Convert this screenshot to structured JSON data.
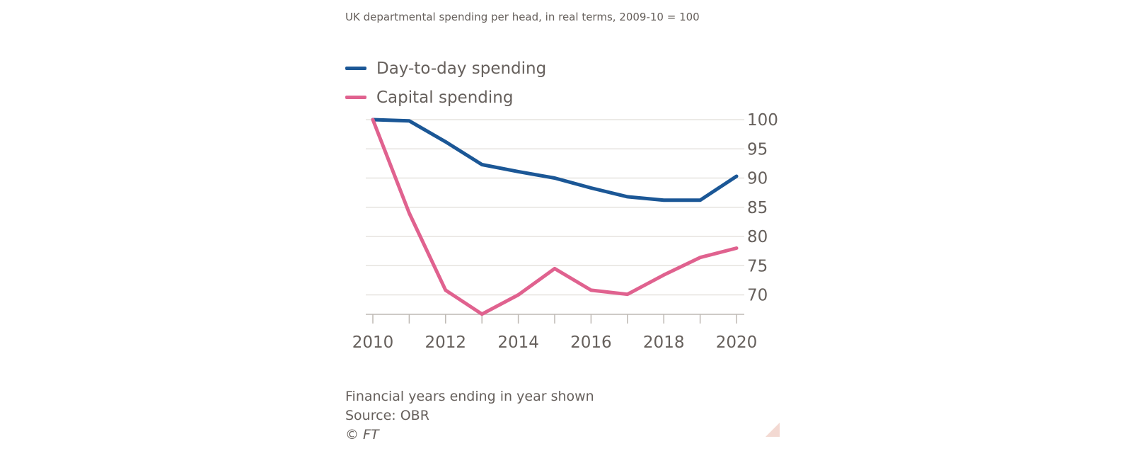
{
  "subtitle": "UK departmental spending per head, in real terms, 2009-10 = 100",
  "footnote": {
    "note": "Financial years ending in year shown",
    "source": "Source: OBR",
    "copyright": "© FT"
  },
  "colors": {
    "day_to_day": "#1b5796",
    "capital": "#e0628f",
    "grid": "#e6e3df",
    "text": "#66605c",
    "axis": "#bdb8b3"
  },
  "chart_data": {
    "type": "line",
    "title": "UK departmental spending per head, in real terms, 2009-10 = 100",
    "xlabel": "",
    "ylabel": "",
    "x": [
      2010,
      2011,
      2012,
      2013,
      2014,
      2015,
      2016,
      2017,
      2018,
      2019,
      2020
    ],
    "series": [
      {
        "name": "Day-to-day spending",
        "color": "#1b5796",
        "values": [
          100,
          99.8,
          96.2,
          92.3,
          91.1,
          90.0,
          88.3,
          86.8,
          86.2,
          86.2,
          90.3
        ]
      },
      {
        "name": "Capital spending",
        "color": "#e0628f",
        "values": [
          100,
          84.0,
          70.8,
          66.7,
          70.0,
          74.5,
          70.8,
          70.1,
          73.4,
          76.4,
          78.0
        ]
      }
    ],
    "yticks": [
      100,
      95,
      90,
      85,
      80,
      75,
      70
    ],
    "xticks": [
      2010,
      2012,
      2014,
      2016,
      2018,
      2020
    ],
    "xlim": [
      2010,
      2020
    ],
    "ylim": [
      66.7,
      100
    ],
    "grid": true,
    "legend_position": "top-left"
  }
}
